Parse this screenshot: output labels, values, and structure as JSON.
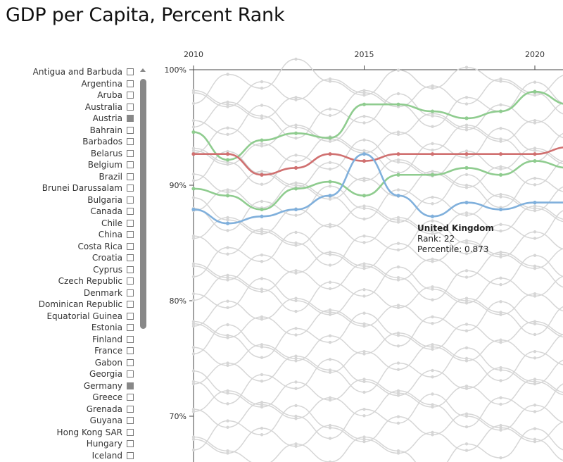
{
  "page": {
    "title": "GDP per Capita, Percent Rank"
  },
  "countries": [
    {
      "name": "Antigua and Barbuda",
      "checked": false
    },
    {
      "name": "Argentina",
      "checked": false
    },
    {
      "name": "Aruba",
      "checked": false
    },
    {
      "name": "Australia",
      "checked": false
    },
    {
      "name": "Austria",
      "checked": true
    },
    {
      "name": "Bahrain",
      "checked": false
    },
    {
      "name": "Barbados",
      "checked": false
    },
    {
      "name": "Belarus",
      "checked": false
    },
    {
      "name": "Belgium",
      "checked": false
    },
    {
      "name": "Brazil",
      "checked": false
    },
    {
      "name": "Brunei Darussalam",
      "checked": false
    },
    {
      "name": "Bulgaria",
      "checked": false
    },
    {
      "name": "Canada",
      "checked": false
    },
    {
      "name": "Chile",
      "checked": false
    },
    {
      "name": "China",
      "checked": false
    },
    {
      "name": "Costa Rica",
      "checked": false
    },
    {
      "name": "Croatia",
      "checked": false
    },
    {
      "name": "Cyprus",
      "checked": false
    },
    {
      "name": "Czech Republic",
      "checked": false
    },
    {
      "name": "Denmark",
      "checked": false
    },
    {
      "name": "Dominican Republic",
      "checked": false
    },
    {
      "name": "Equatorial Guinea",
      "checked": false
    },
    {
      "name": "Estonia",
      "checked": false
    },
    {
      "name": "Finland",
      "checked": false
    },
    {
      "name": "France",
      "checked": false
    },
    {
      "name": "Gabon",
      "checked": false
    },
    {
      "name": "Georgia",
      "checked": false
    },
    {
      "name": "Germany",
      "checked": true
    },
    {
      "name": "Greece",
      "checked": false
    },
    {
      "name": "Grenada",
      "checked": false
    },
    {
      "name": "Guyana",
      "checked": false
    },
    {
      "name": "Hong Kong SAR",
      "checked": false
    },
    {
      "name": "Hungary",
      "checked": false
    },
    {
      "name": "Iceland",
      "checked": false
    }
  ],
  "tooltip": {
    "name": "United Kingdom",
    "rank_text": "Rank: 22",
    "percentile_text": "Percentile: 0.873"
  },
  "chart_data": {
    "type": "line",
    "title": "GDP per Capita, Percent Rank",
    "xlabel": "",
    "ylabel": "",
    "x": [
      2010,
      2011,
      2012,
      2013,
      2014,
      2015,
      2016,
      2017,
      2018,
      2019,
      2020,
      2021
    ],
    "x_ticks": [
      2010,
      2015,
      2020
    ],
    "x_tick_labels": [
      "2010",
      "2015",
      "2020"
    ],
    "y_ticks": [
      1.0,
      0.9,
      0.8,
      0.7
    ],
    "y_tick_labels": [
      "100%",
      "90%",
      "80%",
      "70%"
    ],
    "ylim": [
      0.66,
      1.0
    ],
    "grid": false,
    "background_series_levels": [
      0.99,
      0.98,
      0.97,
      0.96,
      0.95,
      0.94,
      0.93,
      0.92,
      0.91,
      0.9,
      0.89,
      0.88,
      0.87,
      0.86,
      0.85,
      0.84,
      0.83,
      0.82,
      0.81,
      0.8,
      0.79,
      0.78,
      0.77,
      0.76,
      0.75,
      0.74,
      0.73,
      0.72,
      0.71,
      0.7,
      0.69,
      0.68,
      0.67
    ],
    "series": [
      {
        "name": "Austria",
        "color": "#8fcc8f",
        "values": [
          0.946,
          0.922,
          0.939,
          0.945,
          0.941,
          0.97,
          0.97,
          0.964,
          0.958,
          0.964,
          0.981,
          0.97
        ]
      },
      {
        "name": "Germany",
        "color": "#8fcc8f",
        "values": [
          0.897,
          0.891,
          0.879,
          0.897,
          0.903,
          0.891,
          0.909,
          0.909,
          0.915,
          0.909,
          0.921,
          0.915
        ]
      },
      {
        "name": "Belgium",
        "color": "#d07070",
        "values": [
          0.927,
          0.927,
          0.909,
          0.915,
          0.927,
          0.921,
          0.927,
          0.927,
          0.927,
          0.927,
          0.927,
          0.933
        ]
      },
      {
        "name": "United Kingdom",
        "color": "#80b0dc",
        "values": [
          0.879,
          0.867,
          0.873,
          0.879,
          0.891,
          0.927,
          0.891,
          0.873,
          0.885,
          0.879,
          0.885,
          0.885
        ]
      }
    ]
  }
}
